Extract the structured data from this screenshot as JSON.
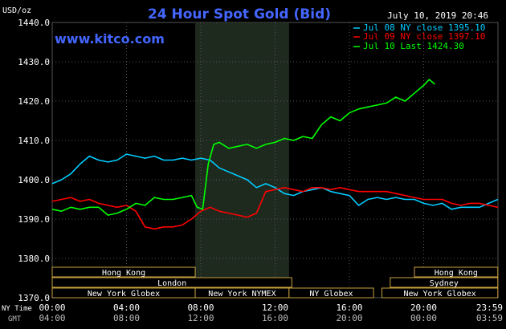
{
  "chart_data": {
    "type": "line",
    "title": "24 Hour Spot Gold (Bid)",
    "watermark": "www.kitco.com",
    "timestamp": "July 10, 2019 20:46",
    "ylabel": "USD/oz",
    "ylim": [
      1370,
      1440
    ],
    "yticks": [
      "1440.0",
      "1430.0",
      "1420.0",
      "1410.0",
      "1400.0",
      "1390.0",
      "1380.0",
      "1370.0"
    ],
    "ytick_values": [
      1440,
      1430,
      1420,
      1410,
      1400,
      1390,
      1380,
      1370
    ],
    "xlim": [
      0,
      24
    ],
    "x_row_labels": {
      "ny": "NY Time",
      "gmt": "GMT"
    },
    "xticks_ny": [
      "00:00",
      "04:00",
      "08:00",
      "12:00",
      "16:00",
      "20:00",
      "23:59"
    ],
    "xticks_gmt": [
      "04:00",
      "08:00",
      "12:00",
      "16:00",
      "20:00",
      "00:00",
      "03:59"
    ],
    "xtick_hours": [
      0,
      4,
      8,
      12,
      16,
      20,
      24
    ],
    "nymex_session": [
      7.7,
      12.75
    ],
    "legend": [
      {
        "label": "Jul 08 NY close 1395.10",
        "color": "#00ccff"
      },
      {
        "label": "Jul 09 NY close 1397.10",
        "color": "#ff0000"
      },
      {
        "label": "Jul 10 Last 1424.30",
        "color": "#00ff00"
      }
    ],
    "series": [
      {
        "name": "Jul 08 NY close 1395.10",
        "color": "#00ccff",
        "x": [
          0,
          0.5,
          1,
          1.5,
          2,
          2.5,
          3,
          3.5,
          4,
          4.5,
          5,
          5.5,
          6,
          6.5,
          7,
          7.5,
          8,
          8.5,
          9,
          9.5,
          10,
          10.5,
          11,
          11.5,
          12,
          12.5,
          13,
          13.5,
          14,
          14.5,
          15,
          15.5,
          16,
          16.5,
          17,
          17.5,
          18,
          18.5,
          19,
          19.5,
          20,
          20.5,
          21,
          21.5,
          22,
          22.5,
          23,
          23.5,
          23.99
        ],
        "y": [
          1399,
          1400,
          1401.5,
          1404,
          1406,
          1405,
          1404.5,
          1405,
          1406.5,
          1406,
          1405.5,
          1406,
          1405,
          1405,
          1405.5,
          1405,
          1405.5,
          1405,
          1403,
          1402,
          1401,
          1400,
          1398,
          1399,
          1398,
          1396.5,
          1396,
          1397,
          1397.5,
          1398,
          1397,
          1396.5,
          1396,
          1393.5,
          1395,
          1395.5,
          1395,
          1395.5,
          1395,
          1395,
          1394,
          1393.5,
          1394,
          1392.5,
          1393,
          1393,
          1393,
          1394,
          1395
        ]
      },
      {
        "name": "Jul 09 NY close 1397.10",
        "color": "#ff0000",
        "x": [
          0,
          0.5,
          1,
          1.5,
          2,
          2.5,
          3,
          3.5,
          4,
          4.5,
          5,
          5.5,
          6,
          6.5,
          7,
          7.5,
          8,
          8.5,
          9,
          9.5,
          10,
          10.5,
          11,
          11.5,
          12,
          12.5,
          13,
          13.5,
          14,
          14.5,
          15,
          15.5,
          16,
          16.5,
          17,
          17.5,
          18,
          18.5,
          19,
          19.5,
          20,
          20.5,
          21,
          21.5,
          22,
          22.5,
          23,
          23.5,
          23.99
        ],
        "y": [
          1394.5,
          1395,
          1395.5,
          1394.5,
          1395,
          1394,
          1393.5,
          1393,
          1393.5,
          1392,
          1388,
          1387.5,
          1388,
          1388,
          1388.5,
          1390,
          1392,
          1393,
          1392,
          1391.5,
          1391,
          1390.5,
          1391.5,
          1397,
          1397.5,
          1398,
          1397.5,
          1397,
          1398,
          1398,
          1397.5,
          1398,
          1397.5,
          1397,
          1397,
          1397,
          1397,
          1396.5,
          1396,
          1395.5,
          1395,
          1395,
          1395,
          1394,
          1393.5,
          1394,
          1394,
          1393.5,
          1393
        ]
      },
      {
        "name": "Jul 10 Last 1424.30",
        "color": "#00ff00",
        "x": [
          0,
          0.5,
          1,
          1.5,
          2,
          2.5,
          3,
          3.5,
          4,
          4.5,
          5,
          5.5,
          6,
          6.5,
          7,
          7.5,
          7.8,
          8.1,
          8.4,
          8.7,
          9,
          9.5,
          10,
          10.5,
          11,
          11.5,
          12,
          12.5,
          13,
          13.5,
          14,
          14.5,
          15,
          15.5,
          16,
          16.5,
          17,
          17.5,
          18,
          18.5,
          19,
          19.5,
          20,
          20.3,
          20.6
        ],
        "y": [
          1392.5,
          1392,
          1393,
          1392.5,
          1393,
          1393,
          1391,
          1391.5,
          1392.5,
          1394,
          1393.5,
          1395.5,
          1395,
          1395,
          1395.5,
          1396,
          1393,
          1392.5,
          1404,
          1409,
          1409.5,
          1408,
          1408.5,
          1409,
          1408,
          1409,
          1409.5,
          1410.5,
          1410,
          1411,
          1410.5,
          1414,
          1416,
          1415,
          1417,
          1418,
          1418.5,
          1419,
          1419.5,
          1421,
          1420,
          1422,
          1424,
          1425.5,
          1424.3
        ]
      }
    ],
    "sessions": [
      {
        "label": "Hong Kong",
        "start": 0,
        "end": 7.7,
        "row": 0
      },
      {
        "label": "London",
        "start": 0,
        "end": 12.9,
        "row": 1
      },
      {
        "label": "New York Globex",
        "start": 0,
        "end": 7.7,
        "row": 2
      },
      {
        "label": "New York NYMEX",
        "start": 7.7,
        "end": 12.75,
        "row": 2
      },
      {
        "label": "NY Globex",
        "start": 12.75,
        "end": 17.3,
        "row": 2
      },
      {
        "label": "Hong Kong",
        "start": 19.5,
        "end": 23.99,
        "row": 0
      },
      {
        "label": "Sydney",
        "start": 18.2,
        "end": 23.99,
        "row": 1
      },
      {
        "label": "New York Globex",
        "start": 17.75,
        "end": 23.99,
        "row": 2
      }
    ]
  }
}
